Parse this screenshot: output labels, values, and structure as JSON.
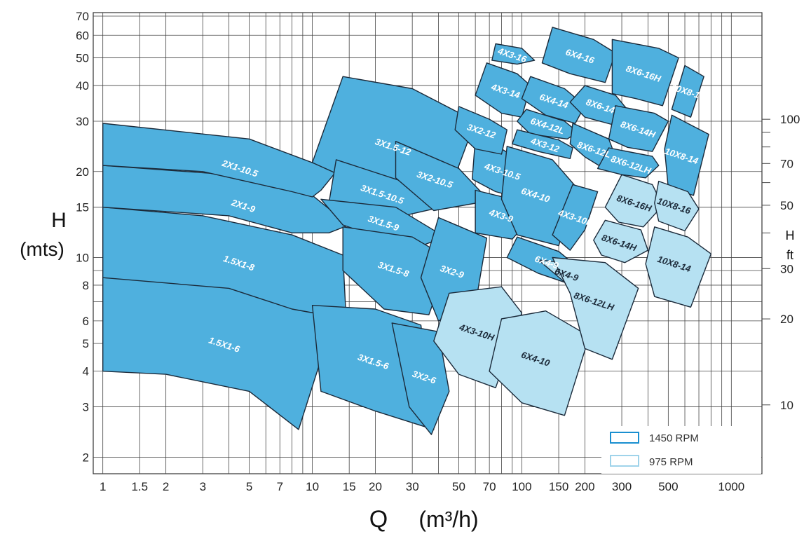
{
  "chart_data": {
    "type": "area",
    "title": "",
    "xlabel": "Q",
    "xlabel_unit": "(m³/h)",
    "ylabel": "H",
    "ylabel_unit": "(mts)",
    "y2label": "H",
    "y2label_unit": "ft",
    "x_scale": "log",
    "y_scale": "log",
    "xlim": [
      0.9,
      1400
    ],
    "ylim": [
      1.75,
      72
    ],
    "grid": true,
    "x_ticks": [
      "1",
      "1.5",
      "2",
      "3",
      "5",
      "7",
      "10",
      "15",
      "20",
      "30",
      "50",
      "70",
      "100",
      "150",
      "200",
      "300",
      "500",
      "1000"
    ],
    "y_ticks": [
      "2",
      "3",
      "4",
      "5",
      "6",
      "8",
      "10",
      "15",
      "20",
      "30",
      "40",
      "50",
      "60",
      "70"
    ],
    "y2_ticks": [
      "10",
      "20",
      "30",
      "50",
      "70",
      "100"
    ],
    "legend": {
      "position": "bottom-right",
      "items": [
        {
          "label": "1450 RPM",
          "color": "#4fb0de",
          "border": "#1a8fd0"
        },
        {
          "label": "975 RPM",
          "color": "#b6e1f2",
          "border": "#9fd3ea"
        }
      ]
    },
    "colors": {
      "rpm1450": "#4fb0de",
      "rpm975": "#b6e1f2",
      "outline": "#1b2a3a"
    },
    "series": [
      {
        "name": "1.5X1-6",
        "rpm": 1450,
        "polygon": [
          [
            1,
            8.5
          ],
          [
            4,
            8.1
          ],
          [
            10,
            6.6
          ],
          [
            12.5,
            5.9
          ],
          [
            8.6,
            2.5
          ],
          [
            5,
            3.4
          ],
          [
            2,
            3.9
          ],
          [
            1,
            4
          ]
        ]
      },
      {
        "name": "1.5X1-8",
        "rpm": 1450,
        "polygon": [
          [
            1,
            15
          ],
          [
            3,
            14
          ],
          [
            8,
            12
          ],
          [
            14,
            10.2
          ],
          [
            14.5,
            6.1
          ],
          [
            8,
            6.6
          ],
          [
            4,
            7.8
          ],
          [
            1,
            8.5
          ]
        ]
      },
      {
        "name": "2X1-9",
        "rpm": 1450,
        "polygon": [
          [
            1,
            21
          ],
          [
            4,
            19.5
          ],
          [
            10,
            16.5
          ],
          [
            15,
            13
          ],
          [
            12,
            12.2
          ],
          [
            8,
            12.2
          ],
          [
            4,
            14
          ],
          [
            1,
            15
          ]
        ]
      },
      {
        "name": "2X1-10.5",
        "rpm": 1450,
        "polygon": [
          [
            1,
            29.5
          ],
          [
            5,
            26
          ],
          [
            13,
            20
          ],
          [
            11,
            17.2
          ],
          [
            10,
            16.3
          ],
          [
            8,
            17
          ],
          [
            3,
            20
          ],
          [
            1,
            21
          ]
        ]
      },
      {
        "name": "3X1.5-12",
        "rpm": 1450,
        "polygon": [
          [
            14,
            43
          ],
          [
            30,
            39
          ],
          [
            60,
            30
          ],
          [
            45,
            17
          ],
          [
            30,
            14.5
          ],
          [
            14.5,
            19
          ],
          [
            10,
            21.5
          ]
        ]
      },
      {
        "name": "3X1.5-10.5",
        "rpm": 1450,
        "polygon": [
          [
            13,
            22
          ],
          [
            30,
            18
          ],
          [
            38,
            14.8
          ],
          [
            26,
            13.9
          ],
          [
            12,
            15.5
          ]
        ]
      },
      {
        "name": "3X2-10.5",
        "rpm": 1450,
        "polygon": [
          [
            25,
            25.5
          ],
          [
            50,
            20.5
          ],
          [
            70,
            15.8
          ],
          [
            38,
            14.6
          ],
          [
            25,
            19
          ]
        ]
      },
      {
        "name": "3X1.5-9",
        "rpm": 1450,
        "polygon": [
          [
            11,
            16
          ],
          [
            25,
            15
          ],
          [
            43,
            11.8
          ],
          [
            30,
            10.7
          ],
          [
            14,
            13
          ]
        ]
      },
      {
        "name": "3X1.5-8",
        "rpm": 1450,
        "polygon": [
          [
            14,
            12.8
          ],
          [
            30,
            11.8
          ],
          [
            45,
            9.9
          ],
          [
            36,
            6.3
          ],
          [
            22,
            6.6
          ],
          [
            14,
            9
          ]
        ]
      },
      {
        "name": "3X1.5-6",
        "rpm": 1450,
        "polygon": [
          [
            10,
            6.8
          ],
          [
            20,
            6.6
          ],
          [
            33,
            5.8
          ],
          [
            38,
            2.5
          ],
          [
            20,
            2.9
          ],
          [
            11,
            3.4
          ]
        ]
      },
      {
        "name": "3X2-6",
        "rpm": 1450,
        "polygon": [
          [
            24,
            5.9
          ],
          [
            40,
            5.5
          ],
          [
            45,
            3.4
          ],
          [
            37,
            2.4
          ],
          [
            29,
            3
          ]
        ]
      },
      {
        "name": "3X2-9",
        "rpm": 1450,
        "polygon": [
          [
            40,
            13.8
          ],
          [
            68,
            11.7
          ],
          [
            60,
            6.8
          ],
          [
            40,
            6
          ],
          [
            33,
            8.5
          ]
        ]
      },
      {
        "name": "4X3-9",
        "rpm": 1450,
        "polygon": [
          [
            60,
            17.2
          ],
          [
            90,
            16
          ],
          [
            110,
            13.7
          ],
          [
            90,
            11.6
          ],
          [
            60,
            12.2
          ]
        ]
      },
      {
        "name": "4X3-10.5",
        "rpm": 1450,
        "polygon": [
          [
            60,
            26
          ],
          [
            80,
            24
          ],
          [
            120,
            20
          ],
          [
            110,
            15.8
          ],
          [
            75,
            17
          ],
          [
            58,
            18.8
          ]
        ]
      },
      {
        "name": "3X2-12",
        "rpm": 1450,
        "polygon": [
          [
            50,
            33.8
          ],
          [
            70,
            30.5
          ],
          [
            85,
            28
          ],
          [
            80,
            23
          ],
          [
            60,
            24
          ],
          [
            48,
            28
          ]
        ]
      },
      {
        "name": "4X3-14",
        "rpm": 1450,
        "polygon": [
          [
            68,
            48
          ],
          [
            95,
            44
          ],
          [
            110,
            40
          ],
          [
            100,
            31
          ],
          [
            80,
            32
          ],
          [
            60,
            37
          ]
        ]
      },
      {
        "name": "4X3-16",
        "rpm": 1450,
        "polygon": [
          [
            75,
            56
          ],
          [
            100,
            54
          ],
          [
            115,
            49
          ],
          [
            95,
            47.5
          ],
          [
            72,
            49
          ]
        ]
      },
      {
        "name": "6X4-16",
        "rpm": 1450,
        "polygon": [
          [
            140,
            64
          ],
          [
            220,
            58
          ],
          [
            280,
            52
          ],
          [
            250,
            41
          ],
          [
            170,
            44
          ],
          [
            125,
            48
          ]
        ]
      },
      {
        "name": "6X4-14",
        "rpm": 1450,
        "polygon": [
          [
            110,
            43
          ],
          [
            160,
            39
          ],
          [
            200,
            34
          ],
          [
            180,
            29.5
          ],
          [
            130,
            31.5
          ],
          [
            100,
            36
          ]
        ]
      },
      {
        "name": "6X4-12L",
        "rpm": 1450,
        "polygon": [
          [
            105,
            33
          ],
          [
            160,
            30
          ],
          [
            185,
            27.5
          ],
          [
            165,
            26
          ],
          [
            110,
            27
          ],
          [
            95,
            30
          ]
        ]
      },
      {
        "name": "4X3-12",
        "rpm": 1450,
        "polygon": [
          [
            95,
            28
          ],
          [
            150,
            25.8
          ],
          [
            175,
            24.2
          ],
          [
            170,
            22.2
          ],
          [
            120,
            23.5
          ],
          [
            90,
            25
          ]
        ]
      },
      {
        "name": "6X4-10",
        "rpm": 1450,
        "polygon": [
          [
            85,
            24.5
          ],
          [
            140,
            22
          ],
          [
            180,
            17.8
          ],
          [
            150,
            11
          ],
          [
            95,
            12
          ],
          [
            80,
            16
          ]
        ]
      },
      {
        "name": "8X6-14",
        "rpm": 1450,
        "polygon": [
          [
            200,
            40
          ],
          [
            280,
            37
          ],
          [
            330,
            32
          ],
          [
            280,
            29
          ],
          [
            200,
            31
          ],
          [
            170,
            35
          ]
        ]
      },
      {
        "name": "8X6-12L",
        "rpm": 1450,
        "polygon": [
          [
            175,
            29.5
          ],
          [
            260,
            26
          ],
          [
            290,
            21
          ],
          [
            260,
            20
          ],
          [
            200,
            22.5
          ],
          [
            170,
            25
          ]
        ]
      },
      {
        "name": "4X3-10H",
        "rpm": 1450,
        "polygon": [
          [
            175,
            18
          ],
          [
            230,
            17
          ],
          [
            200,
            12.5
          ],
          [
            170,
            10.6
          ],
          [
            140,
            12
          ]
        ]
      },
      {
        "name": "6X4-9",
        "rpm": 1450,
        "polygon": [
          [
            95,
            11.8
          ],
          [
            150,
            10.5
          ],
          [
            190,
            9.1
          ],
          [
            185,
            7.9
          ],
          [
            120,
            8.8
          ],
          [
            85,
            10
          ]
        ]
      },
      {
        "name": "8X6-16H",
        "rpm": 1450,
        "polygon": [
          [
            270,
            58
          ],
          [
            450,
            54
          ],
          [
            560,
            50
          ],
          [
            470,
            34
          ],
          [
            350,
            36
          ],
          [
            270,
            37.5
          ]
        ]
      },
      {
        "name": "10X8-16",
        "rpm": 1450,
        "polygon": [
          [
            600,
            47
          ],
          [
            740,
            43
          ],
          [
            640,
            31
          ],
          [
            520,
            33
          ]
        ]
      },
      {
        "name": "8X6-14H",
        "rpm": 1450,
        "polygon": [
          [
            280,
            34
          ],
          [
            430,
            32
          ],
          [
            500,
            30
          ],
          [
            420,
            23.5
          ],
          [
            320,
            24.3
          ],
          [
            260,
            26
          ]
        ]
      },
      {
        "name": "10X8-14",
        "rpm": 1450,
        "polygon": [
          [
            520,
            31.5
          ],
          [
            780,
            27
          ],
          [
            660,
            16.5
          ],
          [
            500,
            17.5
          ],
          [
            480,
            24
          ]
        ]
      },
      {
        "name": "8X6-12LH",
        "rpm": 1450,
        "polygon": [
          [
            260,
            24.2
          ],
          [
            420,
            22.6
          ],
          [
            450,
            21
          ],
          [
            390,
            19
          ],
          [
            300,
            19.5
          ],
          [
            230,
            20.5
          ]
        ]
      },
      {
        "name": "4X3-10H",
        "rpm": 975,
        "polygon": [
          [
            45,
            7.5
          ],
          [
            80,
            7.9
          ],
          [
            100,
            6.4
          ],
          [
            75,
            3.5
          ],
          [
            50,
            3.9
          ],
          [
            38,
            5.1
          ]
        ]
      },
      {
        "name": "6X4-10",
        "rpm": 975,
        "polygon": [
          [
            80,
            6.1
          ],
          [
            130,
            6.5
          ],
          [
            210,
            5.3
          ],
          [
            160,
            2.8
          ],
          [
            100,
            3.1
          ],
          [
            70,
            4
          ]
        ]
      },
      {
        "name": "6X4-9",
        "rpm": 975,
        "polygon": [
          [
            120,
            9.8
          ],
          [
            160,
            9.6
          ],
          [
            200,
            8.1
          ],
          [
            185,
            7.5
          ]
        ]
      },
      {
        "name": "8X6-12LH",
        "rpm": 975,
        "polygon": [
          [
            140,
            10
          ],
          [
            250,
            9.6
          ],
          [
            360,
            7.8
          ],
          [
            270,
            4.4
          ],
          [
            200,
            4.8
          ],
          [
            170,
            7.5
          ]
        ]
      },
      {
        "name": "8X6-16H",
        "rpm": 975,
        "polygon": [
          [
            300,
            19.5
          ],
          [
            420,
            18
          ],
          [
            470,
            15.2
          ],
          [
            380,
            12.8
          ],
          [
            290,
            13.3
          ],
          [
            250,
            15
          ]
        ]
      },
      {
        "name": "8X6-14H",
        "rpm": 975,
        "polygon": [
          [
            250,
            13.5
          ],
          [
            370,
            12.5
          ],
          [
            400,
            10.6
          ],
          [
            310,
            9.6
          ],
          [
            240,
            10.2
          ],
          [
            220,
            11.5
          ]
        ]
      },
      {
        "name": "10X8-16",
        "rpm": 975,
        "polygon": [
          [
            450,
            18.5
          ],
          [
            620,
            17
          ],
          [
            700,
            14.8
          ],
          [
            600,
            12.4
          ],
          [
            450,
            13.4
          ],
          [
            430,
            15.5
          ]
        ]
      },
      {
        "name": "10X8-14",
        "rpm": 975,
        "polygon": [
          [
            430,
            12.8
          ],
          [
            620,
            11.8
          ],
          [
            800,
            10.3
          ],
          [
            640,
            6.7
          ],
          [
            430,
            7.3
          ],
          [
            390,
            9.5
          ]
        ]
      }
    ]
  }
}
